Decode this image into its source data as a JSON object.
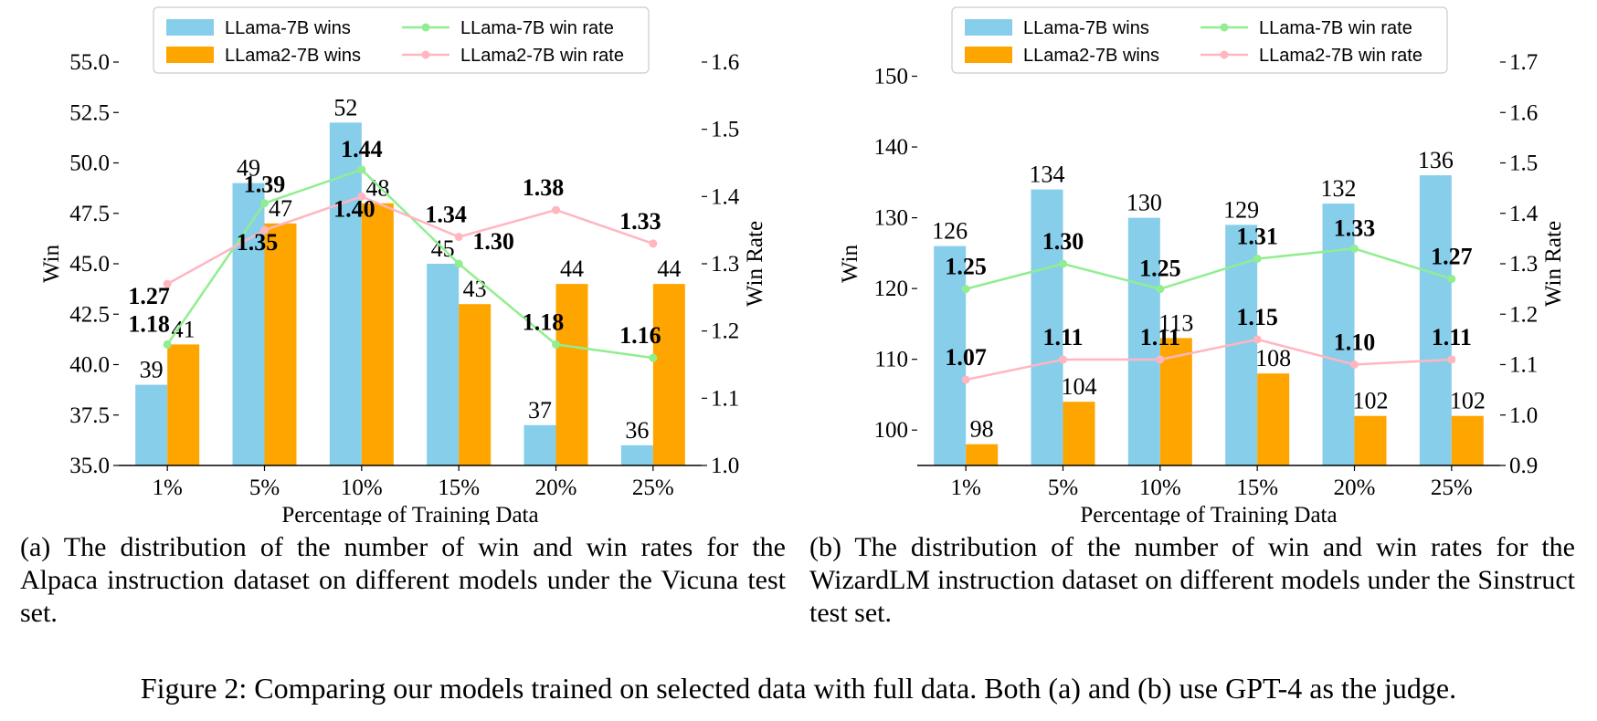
{
  "chart_data": [
    {
      "type": "bar",
      "panel": "a",
      "categories": [
        "1%",
        "5%",
        "10%",
        "15%",
        "20%",
        "25%"
      ],
      "xlabel": "Percentage of Training Data",
      "ylabel": "Win",
      "y2label": "Win Rate",
      "ylim": [
        35.0,
        55.0
      ],
      "yticks": [
        "35.0",
        "37.5",
        "40.0",
        "42.5",
        "45.0",
        "47.5",
        "50.0",
        "52.5",
        "55.0"
      ],
      "y2lim": [
        1.0,
        1.6
      ],
      "y2ticks": [
        "1.0",
        "1.1",
        "1.2",
        "1.3",
        "1.4",
        "1.5",
        "1.6"
      ],
      "series": [
        {
          "name": "LLama-7B wins",
          "kind": "bar",
          "color": "#87CEEB",
          "values": [
            39,
            49,
            52,
            45,
            37,
            36
          ]
        },
        {
          "name": "LLama2-7B wins",
          "kind": "bar",
          "color": "#FFA500",
          "values": [
            41,
            47,
            48,
            43,
            44,
            44
          ]
        },
        {
          "name": "LLama-7B win rate",
          "kind": "line",
          "axis": "right",
          "color": "#90EE90",
          "values": [
            1.18,
            1.39,
            1.44,
            1.3,
            1.18,
            1.16
          ]
        },
        {
          "name": "LLama2-7B win rate",
          "kind": "line",
          "axis": "right",
          "color": "#FFB6C1",
          "values": [
            1.27,
            1.35,
            1.4,
            1.34,
            1.38,
            1.33
          ]
        }
      ],
      "legend_position": "top"
    },
    {
      "type": "bar",
      "panel": "b",
      "categories": [
        "1%",
        "5%",
        "10%",
        "15%",
        "20%",
        "25%"
      ],
      "xlabel": "Percentage of Training Data",
      "ylabel": "Win",
      "y2label": "Win Rate",
      "ylim": [
        95,
        152
      ],
      "yticks": [
        "100",
        "110",
        "120",
        "130",
        "140",
        "150"
      ],
      "y2lim": [
        0.9,
        1.7
      ],
      "y2ticks": [
        "0.9",
        "1.0",
        "1.1",
        "1.2",
        "1.3",
        "1.4",
        "1.5",
        "1.6",
        "1.7"
      ],
      "series": [
        {
          "name": "LLama-7B wins",
          "kind": "bar",
          "color": "#87CEEB",
          "values": [
            126,
            134,
            130,
            129,
            132,
            136
          ]
        },
        {
          "name": "LLama2-7B wins",
          "kind": "bar",
          "color": "#FFA500",
          "values": [
            98,
            104,
            113,
            108,
            102,
            102
          ]
        },
        {
          "name": "LLama-7B win rate",
          "kind": "line",
          "axis": "right",
          "color": "#90EE90",
          "values": [
            1.25,
            1.3,
            1.25,
            1.31,
            1.33,
            1.27
          ]
        },
        {
          "name": "LLama2-7B win rate",
          "kind": "line",
          "axis": "right",
          "color": "#FFB6C1",
          "values": [
            1.07,
            1.11,
            1.11,
            1.15,
            1.1,
            1.11
          ]
        }
      ],
      "legend_position": "top"
    }
  ],
  "captions": {
    "a": "(a) The distribution of the number of win and win rates for the Alpaca instruction dataset on different models under the Vicuna test set.",
    "b": "(b) The distribution of the number of win and win rates for the WizardLM instruction dataset on different models under the Sinstruct test set.",
    "figure": "Figure 2: Comparing our models trained on selected data with full data. Both (a) and (b) use GPT-4 as the judge."
  }
}
